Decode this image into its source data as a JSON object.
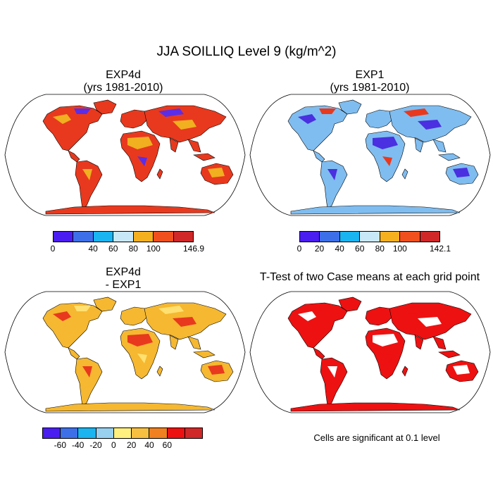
{
  "title": "JJA SOILLIQ Level 9 (kg/m^2)",
  "panels": [
    {
      "title_line1": "EXP4d",
      "title_line2": "(yrs 1981-2010)",
      "land": "#e8391e",
      "patch": "#f0b020",
      "patch2": "#5a2ee8"
    },
    {
      "title_line1": "EXP1",
      "title_line2": "(yrs 1981-2010)",
      "land": "#7fbdf0",
      "patch": "#4a30e0",
      "patch2": "#e8391e"
    },
    {
      "title_line1": "EXP4d",
      "title_line2": "- EXP1",
      "land": "#f5b830",
      "patch": "#e8391e",
      "patch2": "#ffe070"
    },
    {
      "title_line1": "T-Test of two Case means at each grid point",
      "title_line2": "",
      "land": "#ee1111",
      "patch": "#ffffff",
      "patch2": "#ee1111"
    }
  ],
  "colorbars": [
    {
      "colors": [
        "#4a1ef0",
        "#3d70e8",
        "#1ab4f0",
        "#c8e8f8",
        "#f5b020",
        "#f0501e",
        "#d02828"
      ],
      "labels": [
        "0",
        "40",
        "60",
        "80",
        "100",
        "146.9"
      ]
    },
    {
      "colors": [
        "#4a1ef0",
        "#3d70e8",
        "#1ab4f0",
        "#c8e8f8",
        "#f5b020",
        "#f0501e",
        "#d02828"
      ],
      "labels": [
        "0",
        "20",
        "40",
        "60",
        "80",
        "100",
        "142.1"
      ]
    },
    {
      "colors": [
        "#4a1ef0",
        "#3d70e8",
        "#1ab4f0",
        "#98d0f0",
        "#fff080",
        "#f8c040",
        "#f08020",
        "#ee1111",
        "#d02828"
      ],
      "labels": [
        "-60",
        "-40",
        "-20",
        "0",
        "20",
        "40",
        "60"
      ]
    }
  ],
  "note": "Cells are significant at 0.1 level"
}
